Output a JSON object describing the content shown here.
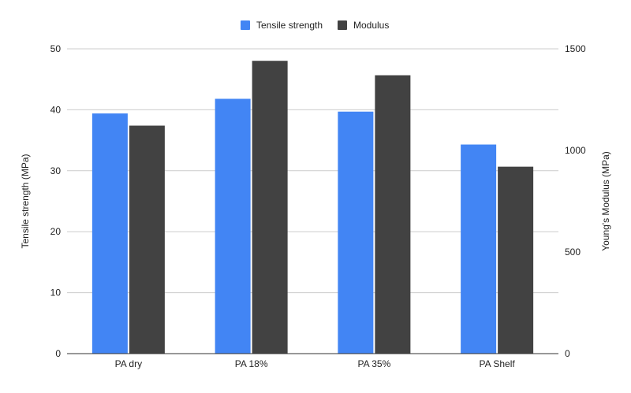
{
  "chart_data": {
    "type": "bar",
    "categories": [
      "PA dry",
      "PA 18%",
      "PA 35%",
      "PA Shelf"
    ],
    "series": [
      {
        "name": "Tensile strength",
        "axis": "left",
        "color": "#4285F4",
        "values": [
          39.4,
          41.8,
          39.7,
          34.3
        ]
      },
      {
        "name": "Modulus",
        "axis": "right",
        "color": "#424242",
        "values": [
          1122,
          1441,
          1370,
          920
        ]
      }
    ],
    "y_left": {
      "label": "Tensile strength (MPa)",
      "range": [
        0,
        50
      ],
      "ticks": [
        0,
        10,
        20,
        30,
        40,
        50
      ]
    },
    "y_right": {
      "label": "Young's Modulus (MPa)",
      "range": [
        0,
        1500
      ],
      "ticks": [
        0,
        500,
        1000,
        1500
      ]
    },
    "grid": true,
    "legend_position": "top-center"
  }
}
